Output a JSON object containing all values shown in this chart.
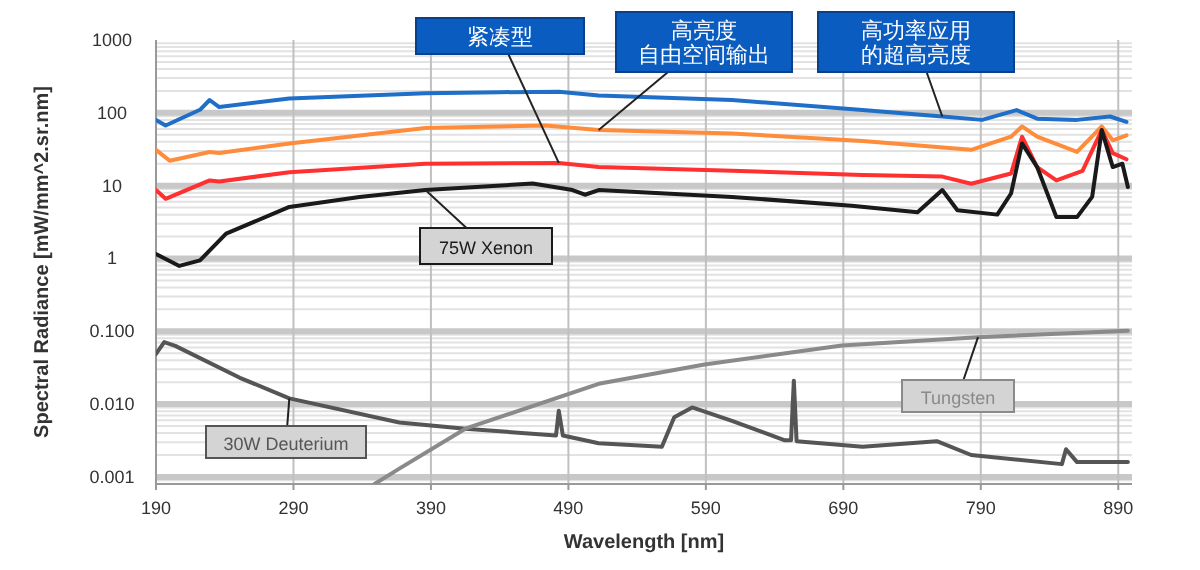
{
  "chart_data": {
    "type": "line",
    "xlabel": "Wavelength [nm]",
    "ylabel": "Spectral Radiance [mW/mm^2.sr.nm]",
    "xlim": [
      190,
      900
    ],
    "xticks": [
      190,
      290,
      390,
      490,
      590,
      690,
      790,
      890
    ],
    "ylim": [
      0.0008,
      1000
    ],
    "log": "y",
    "yticks": [
      {
        "value": 0.001,
        "label": "0.001"
      },
      {
        "value": 0.01,
        "label": "0.010"
      },
      {
        "value": 0.1,
        "label": "0.100"
      },
      1,
      10,
      100,
      1000
    ],
    "grid": true,
    "marker": "none",
    "line_style": "solid",
    "series": [
      {
        "name": "高功率应用的超高亮度",
        "color": "#1f6fc8",
        "x": [
          190,
          197,
          222,
          229,
          236,
          287,
          386,
          440,
          483,
          512,
          609,
          704,
          762,
          791,
          816,
          831,
          860,
          884,
          896
        ],
        "values": [
          80,
          67,
          110,
          150,
          120,
          157,
          185,
          192,
          195,
          173,
          150,
          109,
          89,
          80,
          109,
          83,
          80,
          89,
          75
        ]
      },
      {
        "name": "高亮度自由空间输出",
        "color": "#ff8c3a",
        "x": [
          190,
          200,
          229,
          236,
          287,
          386,
          473,
          512,
          609,
          704,
          783,
          812,
          820,
          831,
          860,
          878,
          886,
          896
        ],
        "values": [
          31,
          22,
          29,
          28,
          38,
          62,
          67,
          58,
          52,
          41,
          31,
          47,
          65,
          47,
          29,
          65,
          42,
          49
        ]
      },
      {
        "name": "紧凑型",
        "color": "#ff3030",
        "x": [
          190,
          197,
          229,
          236,
          287,
          386,
          483,
          512,
          609,
          704,
          762,
          783,
          812,
          820,
          831,
          845,
          864,
          878,
          886,
          896
        ],
        "values": [
          8.7,
          6.6,
          11.8,
          11.4,
          15.3,
          20,
          20.5,
          18,
          16,
          14,
          13.3,
          10.6,
          14.7,
          47,
          18,
          11.8,
          16,
          58,
          28,
          23
        ]
      },
      {
        "name": "75W Xenon",
        "color": "#1a1a1a",
        "x": [
          190,
          207,
          222,
          241,
          287,
          338,
          386,
          464,
          493,
          502,
          512,
          609,
          696,
          744,
          762,
          773,
          802,
          812,
          820,
          831,
          845,
          860,
          871,
          878,
          886,
          893,
          897
        ],
        "values": [
          1.15,
          0.79,
          0.94,
          2.2,
          5.1,
          7,
          8.7,
          10.7,
          8.7,
          7.5,
          8.7,
          7,
          5.3,
          4.3,
          8.7,
          4.6,
          4,
          7.8,
          38,
          18,
          3.7,
          3.7,
          7,
          58,
          18,
          20,
          9.6
        ]
      },
      {
        "name": "30W Deuterium",
        "color": "#555555",
        "x": [
          190,
          196,
          204,
          251,
          287,
          367,
          415,
          481,
          483,
          486,
          512,
          558,
          567,
          580,
          609,
          647,
          652,
          654,
          656,
          704,
          758,
          783,
          849,
          852,
          860,
          897
        ],
        "values": [
          0.049,
          0.071,
          0.063,
          0.023,
          0.012,
          0.0056,
          0.0046,
          0.0037,
          0.0081,
          0.0037,
          0.0029,
          0.0026,
          0.0066,
          0.009,
          0.0059,
          0.0032,
          0.0032,
          0.021,
          0.0031,
          0.0026,
          0.0031,
          0.002,
          0.0015,
          0.0024,
          0.0016,
          0.0016
        ]
      },
      {
        "name": "Tungsten",
        "color": "#8a8a8a",
        "x": [
          349,
          367,
          415,
          512,
          589,
          689,
          788,
          897
        ],
        "values": [
          0.0008,
          0.0013,
          0.0046,
          0.019,
          0.035,
          0.064,
          0.083,
          0.102
        ]
      }
    ]
  }
}
